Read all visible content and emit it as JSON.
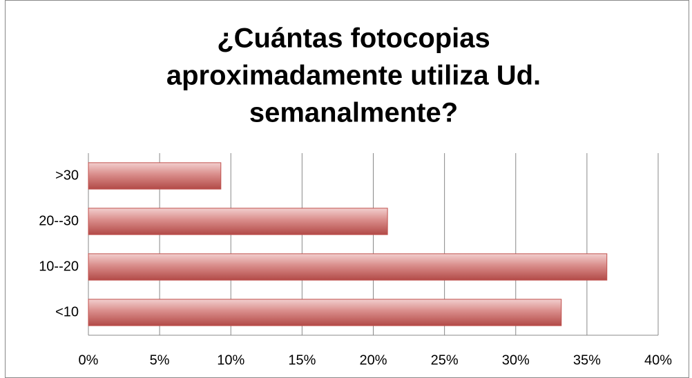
{
  "chart_data": {
    "type": "bar",
    "orientation": "horizontal",
    "title": [
      "¿Cuántas fotocopias",
      "aproximadamente  utiliza Ud.",
      "semanalmente?"
    ],
    "categories": [
      "<10",
      "10--20",
      "20--30",
      ">30"
    ],
    "values": [
      33.2,
      36.4,
      21,
      9.3
    ],
    "color": "#c0504d",
    "xlim": [
      0,
      40
    ],
    "xticks": [
      {
        "value": 0,
        "label": "0%"
      },
      {
        "value": 5,
        "label": "5%"
      },
      {
        "value": 10,
        "label": "10%"
      },
      {
        "value": 15,
        "label": "15%"
      },
      {
        "value": 20,
        "label": "20%"
      },
      {
        "value": 25,
        "label": "25%"
      },
      {
        "value": 30,
        "label": "30%"
      },
      {
        "value": 35,
        "label": "35%"
      },
      {
        "value": 40,
        "label": "40%"
      }
    ],
    "grid": true
  }
}
